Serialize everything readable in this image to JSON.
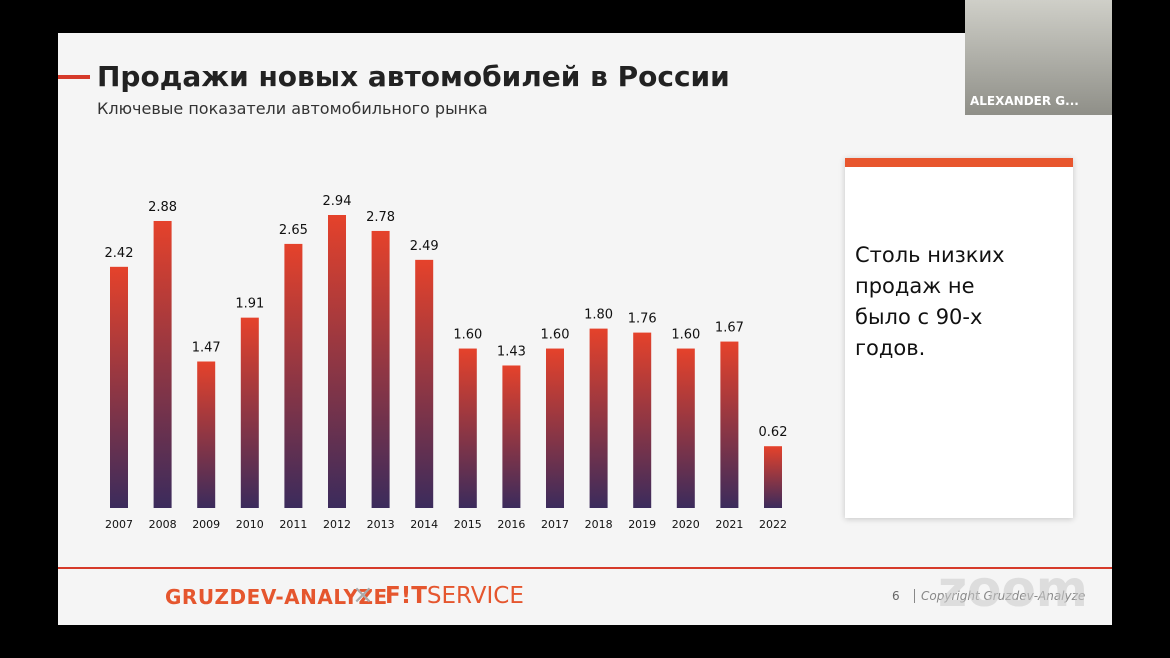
{
  "chart_data": {
    "type": "bar",
    "title": "Продажи новых автомобилей в России",
    "subtitle": "Ключевые показатели автомобильного рынка",
    "categories": [
      "2007",
      "2008",
      "2009",
      "2010",
      "2011",
      "2012",
      "2013",
      "2014",
      "2015",
      "2016",
      "2017",
      "2018",
      "2019",
      "2020",
      "2021",
      "2022"
    ],
    "values": [
      2.42,
      2.88,
      1.47,
      1.91,
      2.65,
      2.94,
      2.78,
      2.49,
      1.6,
      1.43,
      1.6,
      1.8,
      1.76,
      1.6,
      1.67,
      0.62
    ],
    "value_labels": [
      "2.42",
      "2.88",
      "1.47",
      "1.91",
      "2.65",
      "2.94",
      "2.78",
      "2.49",
      "1.60",
      "1.43",
      "1.60",
      "1.80",
      "1.76",
      "1.60",
      "1.67",
      "0.62"
    ],
    "color_top": "#e5422b",
    "color_bottom": "#3b2b5c"
  },
  "callout": "Столь низких продаж не было с 90-х годов.",
  "footer": {
    "brand1": "GRUZDEV-ANALYZE",
    "separator": "×",
    "brand2_a": "F!T",
    "brand2_b": "SERVICE",
    "page": "6",
    "copyright": "Copyright Gruzdev-Analyze"
  },
  "video": {
    "name": "ALEXANDER G..."
  },
  "watermark": "zoom"
}
